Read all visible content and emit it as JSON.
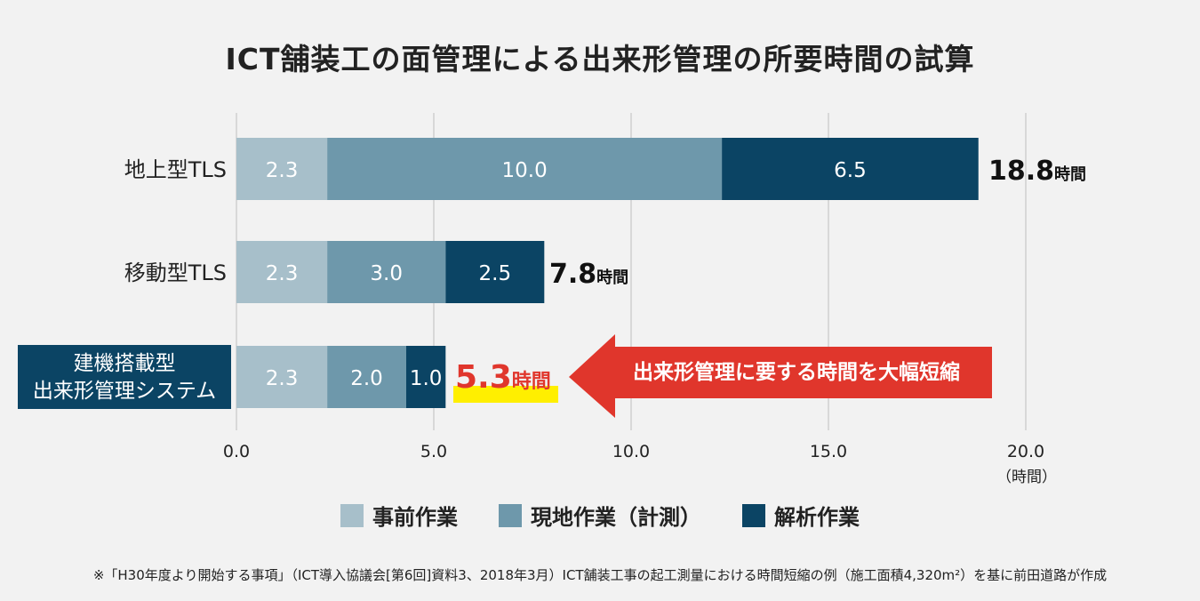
{
  "chart_data": {
    "type": "bar",
    "orientation": "horizontal",
    "stacked": true,
    "title": "ICT舗装工の面管理による出来形管理の所要時間の試算",
    "categories": [
      "地上型TLS",
      "移動型TLS",
      "建機搭載型\n出来形管理システム"
    ],
    "series": [
      {
        "name": "事前作業",
        "values": [
          2.3,
          2.3,
          2.3
        ],
        "labels": [
          "2.3",
          "2.3",
          "2.3"
        ],
        "color": "#a7bfca"
      },
      {
        "name": "現地作業（計測）",
        "values": [
          10.0,
          3.0,
          2.0
        ],
        "labels": [
          "10.0",
          "3.0",
          "2.0"
        ],
        "color": "#6e98ab"
      },
      {
        "name": "解析作業",
        "values": [
          6.5,
          2.5,
          1.0
        ],
        "labels": [
          "6.5",
          "2.5",
          "1.0"
        ],
        "color": "#0b4464"
      }
    ],
    "totals": [
      {
        "value": "18.8",
        "unit": "時間"
      },
      {
        "value": "7.8",
        "unit": "時間"
      },
      {
        "value": "5.3",
        "unit": "時間"
      }
    ],
    "xlim": [
      0,
      20
    ],
    "xticks": [
      "0.0",
      "5.0",
      "10.0",
      "15.0",
      "20.0"
    ],
    "xlabel": "（時間）",
    "grid": true,
    "legend_position": "bottom",
    "annotation": "出来形管理に要する時間を大幅短縮",
    "highlight_category_index": 2,
    "footnote": "※「H30年度より開始する事項」（ICT導入協議会[第6回]資料3、2018年3月）ICT舗装工事の起工測量における時間短縮の例（施工面積4,320m²）を基に前田道路が作成"
  },
  "colors": {
    "accent_red": "#e0362c",
    "highlight_yellow": "#ffef00",
    "highlight_category_bg": "#0b4464",
    "background": "#f2f2f2",
    "grid": "#c8c8c8"
  }
}
